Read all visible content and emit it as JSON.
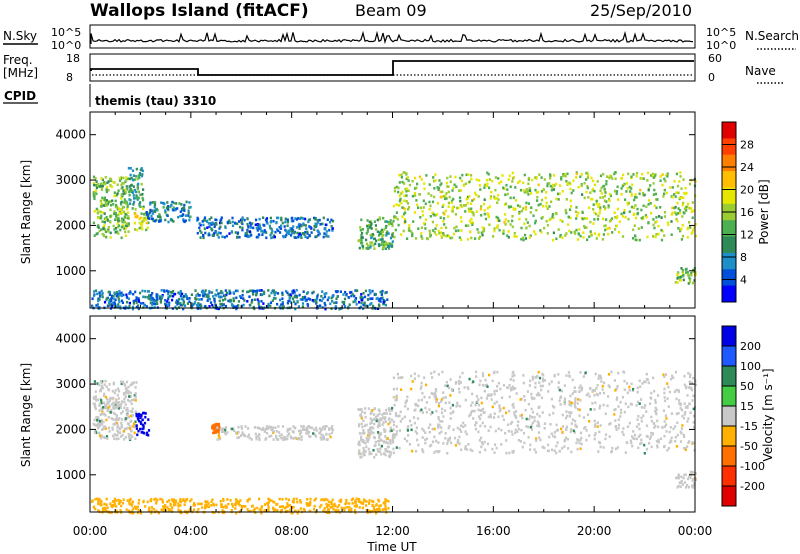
{
  "header": {
    "title": "Wallops Island (fitACF)",
    "beam": "Beam 09",
    "date": "25/Sep/2010"
  },
  "aux_panels": {
    "nsky_label": "N.Sky",
    "nsky_ticks": [
      "10^5",
      "10^0"
    ],
    "nsearch_label": "N.Search",
    "nsearch_ticks": [
      "10^5",
      "10^0"
    ],
    "freq_label": "Freq.",
    "freq_unit": "[MHz]",
    "freq_ticks": [
      "18",
      "8"
    ],
    "nave_label": "Nave",
    "nave_ticks": [
      "60",
      "0"
    ],
    "cpid_label": "CPID",
    "cpid_value": "themis (tau) 3310"
  },
  "chart_data": [
    {
      "type": "heatmap",
      "name": "power",
      "ylabel": "Slant Range [km]",
      "yticks": [
        1000,
        2000,
        3000,
        4000
      ],
      "ylim": [
        180,
        4500
      ],
      "xlim": [
        0,
        24
      ],
      "colorbar_label": "Power [dB]",
      "colorbar_ticks": [
        "28",
        "24",
        "20",
        "16",
        "12",
        "8",
        "4"
      ],
      "colorbar_colors": [
        "#e00000",
        "#ff4000",
        "#ff8000",
        "#ffbf00",
        "#e6e600",
        "#9bcd32",
        "#4caf50",
        "#2e8b57",
        "#1e90c8",
        "#0050dc",
        "#0000ff"
      ],
      "regions": [
        {
          "x": [
            0.1,
            1.5
          ],
          "y": [
            1750,
            3100
          ],
          "value": 14
        },
        {
          "x": [
            1.5,
            2.1
          ],
          "y": [
            2400,
            3300
          ],
          "value": 10
        },
        {
          "x": [
            1.7,
            2.3
          ],
          "y": [
            1900,
            2400
          ],
          "value": 18
        },
        {
          "x": [
            2.2,
            4.0
          ],
          "y": [
            2100,
            2550
          ],
          "value": 7
        },
        {
          "x": [
            4.2,
            9.6
          ],
          "y": [
            1750,
            2200
          ],
          "value": 6
        },
        {
          "x": [
            10.6,
            12.0
          ],
          "y": [
            1500,
            2200
          ],
          "value": 12
        },
        {
          "x": [
            12.0,
            24.0
          ],
          "y": [
            1700,
            3200
          ],
          "value": 16
        },
        {
          "x": [
            23.2,
            24.0
          ],
          "y": [
            750,
            1100
          ],
          "value": 14
        },
        {
          "x": [
            0.0,
            11.8
          ],
          "y": [
            180,
            600
          ],
          "value": 6
        }
      ]
    },
    {
      "type": "heatmap",
      "name": "velocity",
      "xlabel": "Time UT",
      "ylabel": "Slant Range [km]",
      "xticks": [
        "00:00",
        "04:00",
        "08:00",
        "12:00",
        "16:00",
        "20:00",
        "00:00"
      ],
      "yticks": [
        1000,
        2000,
        3000,
        4000
      ],
      "ylim": [
        180,
        4500
      ],
      "xlim": [
        0,
        24
      ],
      "colorbar_label": "Velocity [m s⁻¹]",
      "colorbar_ticks": [
        "200",
        "100",
        "50",
        "15",
        "-15",
        "-50",
        "-100",
        "-200"
      ],
      "colorbar_colors": [
        "#0000e6",
        "#1e5aff",
        "#2e8b57",
        "#44cc44",
        "#c8c8c8",
        "#ffb000",
        "#ff7000",
        "#ff3000",
        "#e00000"
      ],
      "regions": [
        {
          "x": [
            0.1,
            1.8
          ],
          "y": [
            1800,
            3100
          ],
          "value": 0
        },
        {
          "x": [
            1.8,
            2.3
          ],
          "y": [
            1900,
            2400
          ],
          "value": 200
        },
        {
          "x": [
            4.8,
            5.1
          ],
          "y": [
            1950,
            2150
          ],
          "value": -60
        },
        {
          "x": [
            5.0,
            9.6
          ],
          "y": [
            1800,
            2100
          ],
          "value": 0
        },
        {
          "x": [
            10.6,
            12.0
          ],
          "y": [
            1400,
            2500
          ],
          "value": 0
        },
        {
          "x": [
            12.0,
            24.0
          ],
          "y": [
            1500,
            3300
          ],
          "value": 0
        },
        {
          "x": [
            23.2,
            24.0
          ],
          "y": [
            750,
            1100
          ],
          "value": 0
        },
        {
          "x": [
            0.0,
            11.8
          ],
          "y": [
            180,
            500
          ],
          "value": -30
        }
      ]
    }
  ]
}
